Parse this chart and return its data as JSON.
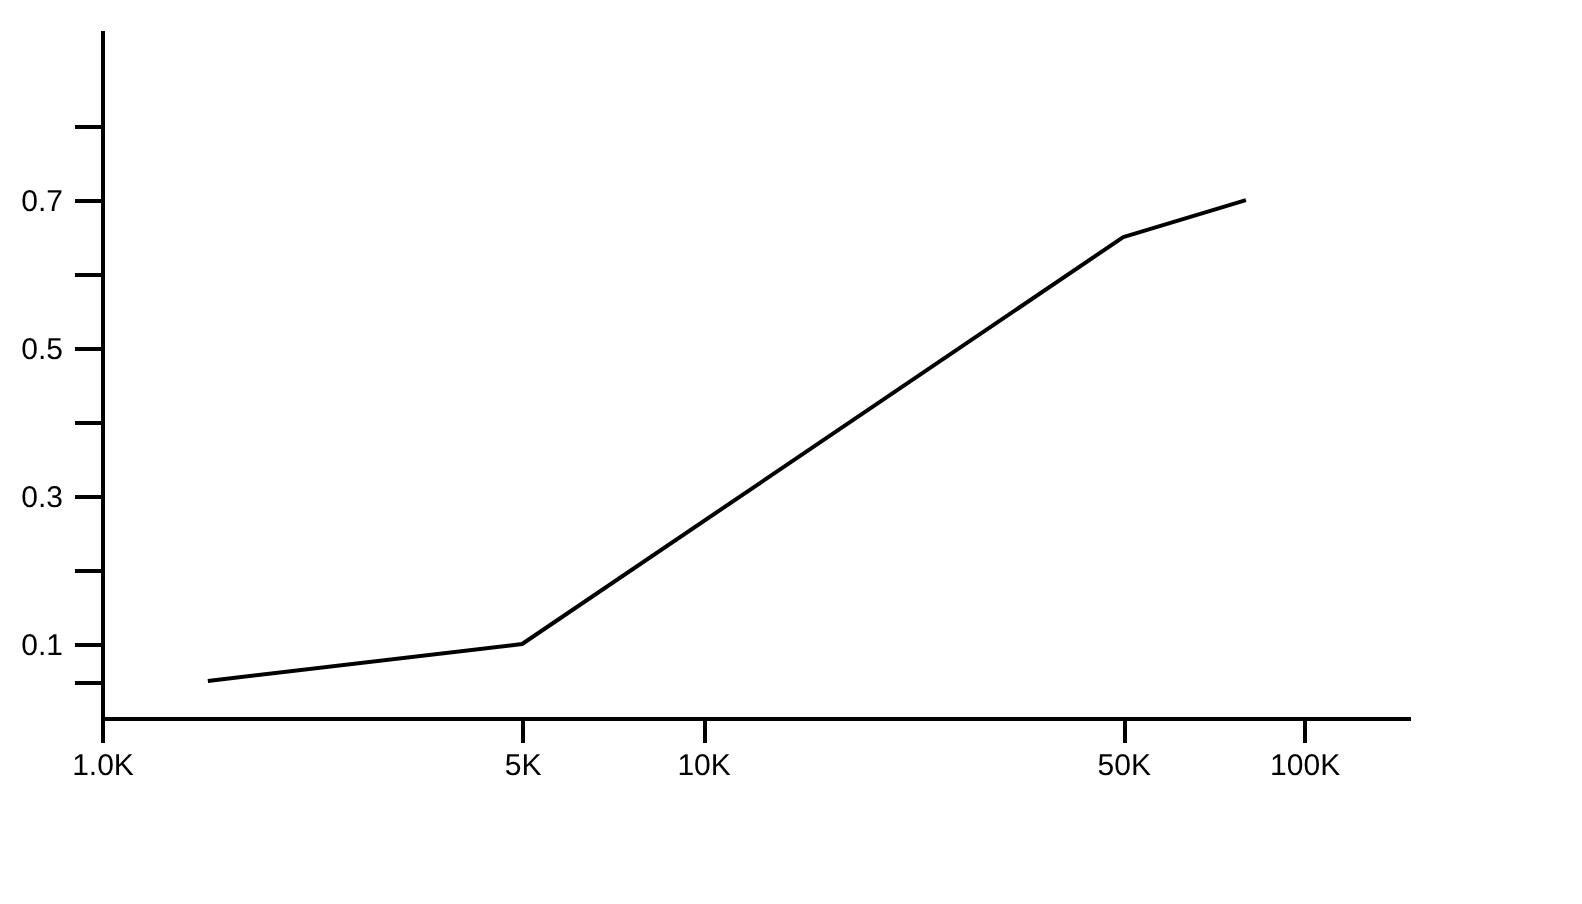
{
  "chart_data": {
    "type": "line",
    "x": [
      1500,
      5000,
      50000,
      80000
    ],
    "series": [
      {
        "color": "#000000",
        "values": [
          0.05,
          0.1,
          0.65,
          0.7
        ]
      }
    ],
    "log": "x",
    "xlim": [
      1000,
      150000
    ],
    "xticks": [
      {
        "value": 1000,
        "label": "1.0K"
      },
      {
        "value": 5000,
        "label": "5K"
      },
      {
        "value": 10000,
        "label": "10K"
      },
      {
        "value": 50000,
        "label": "50K"
      },
      {
        "value": 100000,
        "label": "100K"
      }
    ],
    "ylim": [
      0,
      0.93
    ],
    "yticks": [
      {
        "value": 0.05,
        "label": null
      },
      0.1,
      {
        "value": 0.2,
        "label": null
      },
      0.3,
      {
        "value": 0.4,
        "label": null
      },
      0.5,
      {
        "value": 0.6,
        "label": null
      },
      0.7,
      {
        "value": 0.8,
        "label": null
      }
    ],
    "grid": false,
    "marker": "none",
    "line_style": "solid"
  }
}
